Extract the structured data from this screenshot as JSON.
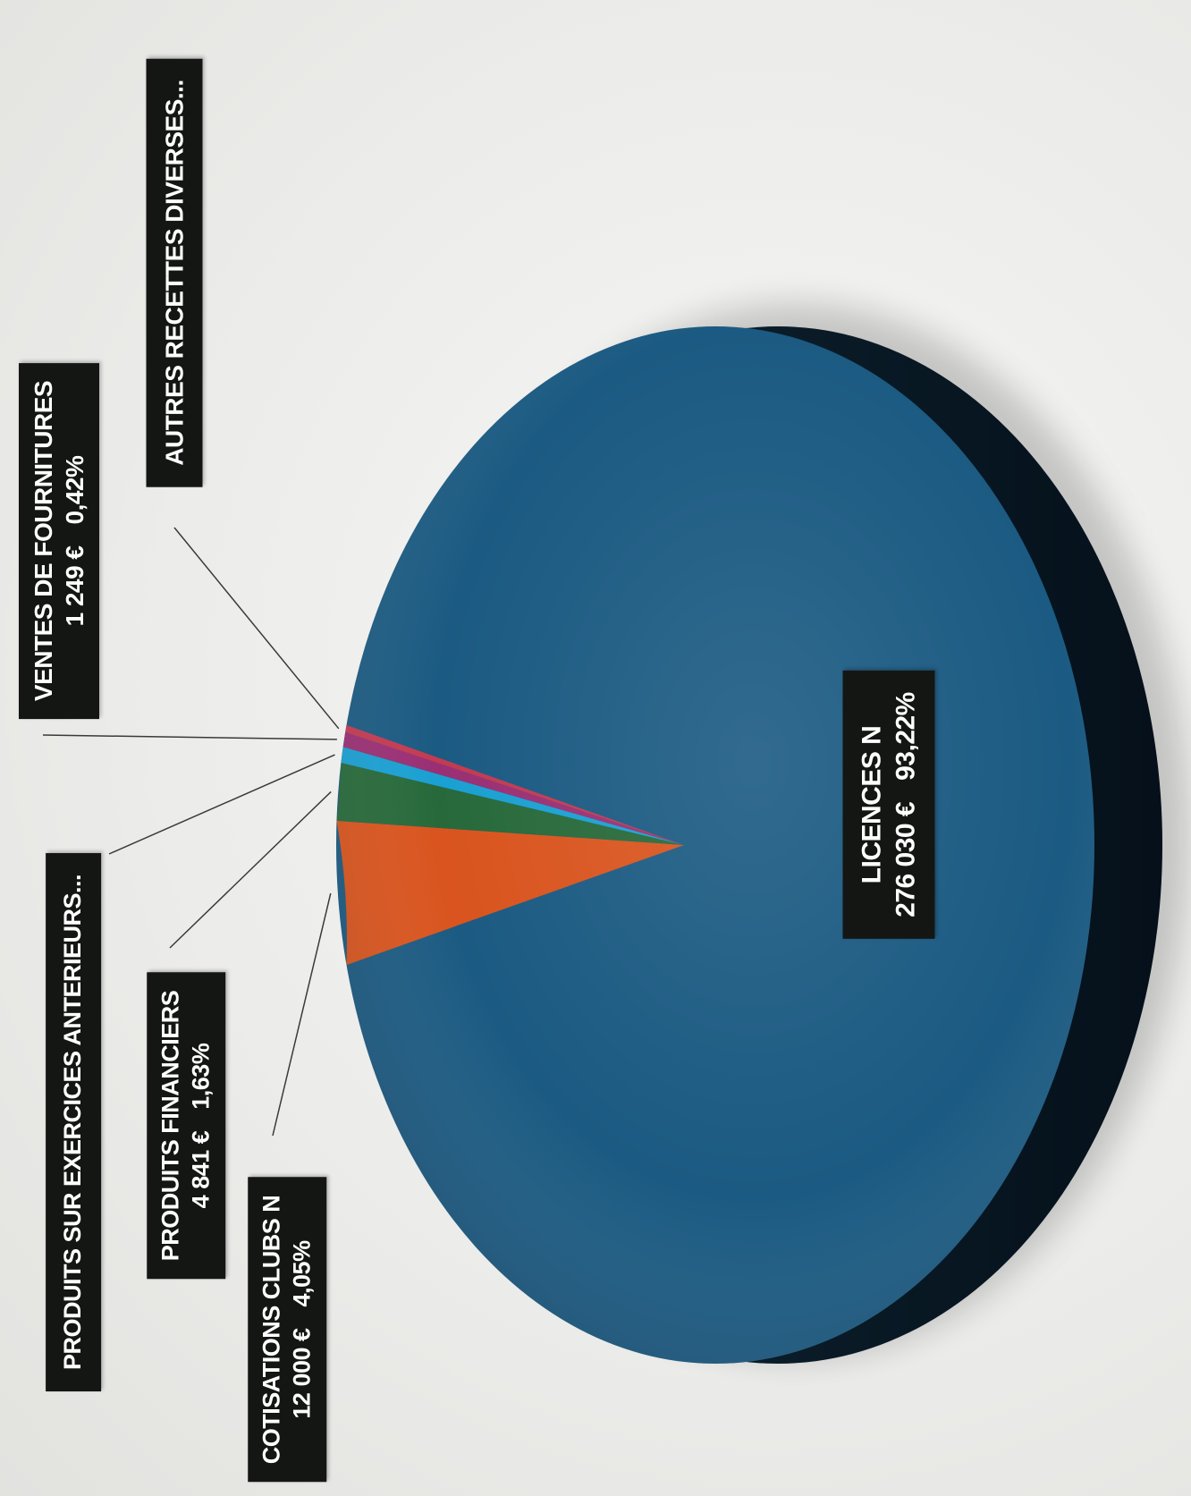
{
  "chart_data": {
    "type": "pie",
    "title": "",
    "slices": [
      {
        "key": "licences",
        "label": "LICENCES N",
        "value": 276030,
        "value_text": "276 030 €",
        "percent": 93.22,
        "percent_text": "93,22%",
        "color": "#1b5a82"
      },
      {
        "key": "cotisations",
        "label": "COTISATIONS CLUBS N",
        "value": 12000,
        "value_text": "12 000 €",
        "percent": 4.05,
        "percent_text": "4,05%",
        "color": "#d9541e"
      },
      {
        "key": "financiers",
        "label": "PRODUITS FINANCIERS",
        "value": 4841,
        "value_text": "4 841 €",
        "percent": 1.63,
        "percent_text": "1,63%",
        "color": "#27693a"
      },
      {
        "key": "anterieurs",
        "label": "PRODUITS SUR EXERCICES ANTERIEURS...",
        "percent": 0.45,
        "color": "#1aa0d2"
      },
      {
        "key": "fournitures",
        "label": "VENTES DE FOURNITURES",
        "value": 1249,
        "value_text": "1 249 €",
        "percent": 0.42,
        "percent_text": "0,42%",
        "color": "#9a2f74"
      },
      {
        "key": "diverses",
        "label": "AUTRES RECETTES DIVERSES...",
        "percent": 0.2,
        "color": "#c33a52"
      }
    ],
    "legend": "none"
  },
  "labels": {
    "fournitures": {
      "title": "VENTES DE FOURNITURES",
      "value": "1 249 €",
      "percent": "0,42%"
    },
    "diverses": {
      "title": "AUTRES RECETTES DIVERSES..."
    },
    "anterieurs": {
      "title": "PRODUITS SUR EXERCICES ANTERIEURS..."
    },
    "financiers": {
      "title": "PRODUITS FINANCIERS",
      "value": "4 841 €",
      "percent": "1,63%"
    },
    "cotisations": {
      "title": "COTISATIONS CLUBS N",
      "value": "12 000 €",
      "percent": "4,05%"
    },
    "licences": {
      "title": "LICENCES N",
      "value": "276 030 €",
      "percent": "93,22%"
    }
  },
  "colors": {
    "label_background": "#141614",
    "label_text": "#ffffff",
    "leader_line": "#3a3a3a",
    "pie_side": "#0a1c28"
  }
}
